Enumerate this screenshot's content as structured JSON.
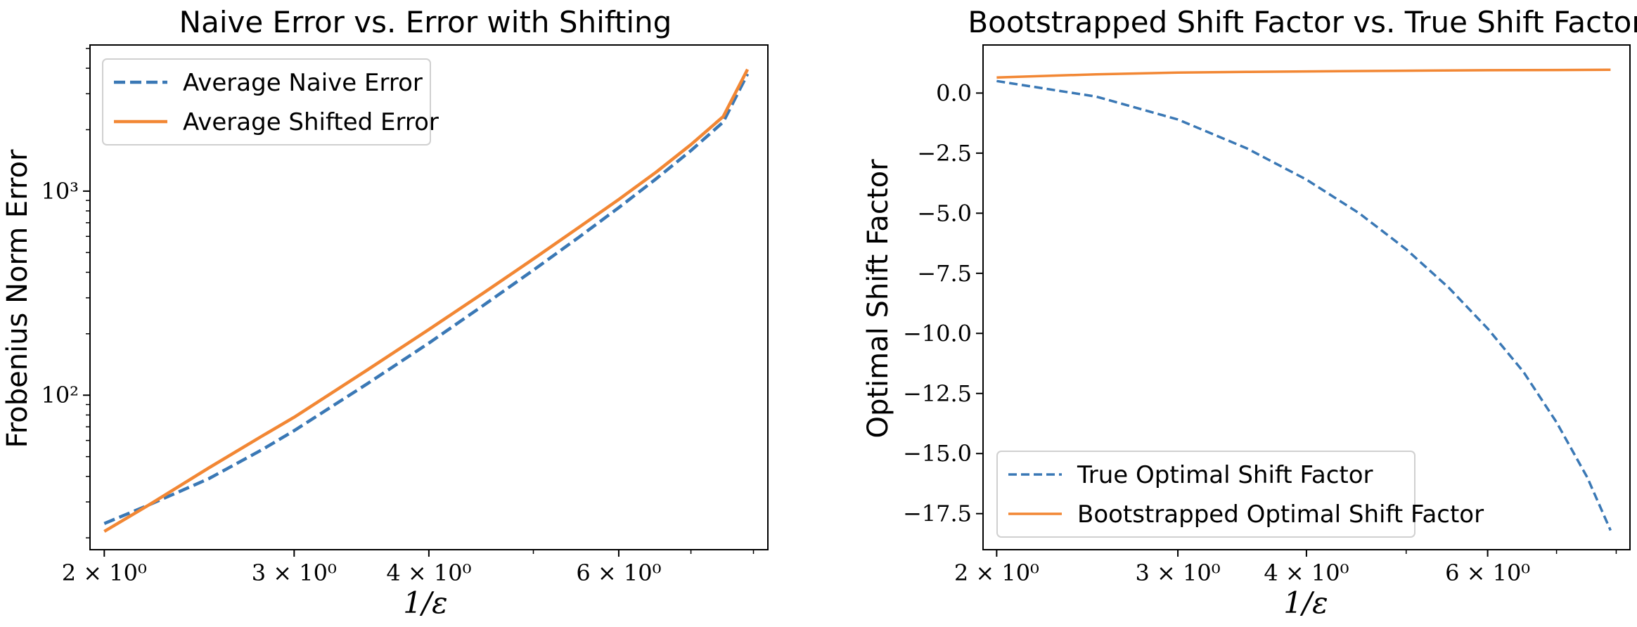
{
  "colors": {
    "naive": "#3a78b5",
    "shifted": "#f28734",
    "frame": "#000000",
    "legend_border": "#d0d0d0"
  },
  "chart_data": [
    {
      "type": "line",
      "title": "Naive Error vs. Error with Shifting",
      "xlabel": "1/ε",
      "ylabel": "Frobenius Norm Error",
      "xscale": "log",
      "yscale": "log",
      "xlim": [
        1.94,
        8.25
      ],
      "ylim": [
        17.5,
        5200
      ],
      "xticks": [
        {
          "value": 2,
          "label": "2 × 10⁰"
        },
        {
          "value": 3,
          "label": "3 × 10⁰"
        },
        {
          "value": 4,
          "label": "4 × 10⁰"
        },
        {
          "value": 6,
          "label": "6 × 10⁰"
        }
      ],
      "yticks": [
        {
          "value": 100,
          "label": "10²"
        },
        {
          "value": 1000,
          "label": "10³"
        }
      ],
      "legend": "upper-left",
      "series": [
        {
          "name": "Average Naive Error",
          "style": "dashed",
          "x": [
            2.0,
            2.2,
            2.5,
            2.8,
            3.0,
            3.5,
            4.0,
            4.5,
            5.0,
            5.5,
            6.0,
            6.5,
            7.0,
            7.5,
            7.9
          ],
          "y": [
            23.5,
            29,
            39,
            54,
            67,
            113,
            180,
            277,
            410,
            590,
            830,
            1150,
            1580,
            2180,
            3750
          ]
        },
        {
          "name": "Average Shifted Error",
          "style": "solid",
          "x": [
            2.0,
            2.2,
            2.5,
            2.8,
            3.0,
            3.5,
            4.0,
            4.5,
            5.0,
            5.5,
            6.0,
            6.5,
            7.0,
            7.5,
            7.9
          ],
          "y": [
            21.5,
            29,
            44,
            63,
            78,
            132,
            210,
            318,
            465,
            660,
            910,
            1240,
            1690,
            2320,
            3950
          ]
        }
      ]
    },
    {
      "type": "line",
      "title": "Bootstrapped Shift Factor vs. True Shift Factor",
      "xlabel": "1/ε",
      "ylabel": "Optimal Shift Factor",
      "xscale": "log",
      "yscale": "linear",
      "xlim": [
        1.94,
        8.25
      ],
      "ylim": [
        -19.0,
        2.0
      ],
      "xticks": [
        {
          "value": 2,
          "label": "2 × 10⁰"
        },
        {
          "value": 3,
          "label": "3 × 10⁰"
        },
        {
          "value": 4,
          "label": "4 × 10⁰"
        },
        {
          "value": 6,
          "label": "6 × 10⁰"
        }
      ],
      "yticks": [
        {
          "value": 0.0,
          "label": "0.0"
        },
        {
          "value": -2.5,
          "label": "−2.5"
        },
        {
          "value": -5.0,
          "label": "−5.0"
        },
        {
          "value": -7.5,
          "label": "−7.5"
        },
        {
          "value": -10.0,
          "label": "−10.0"
        },
        {
          "value": -12.5,
          "label": "−12.5"
        },
        {
          "value": -15.0,
          "label": "−15.0"
        },
        {
          "value": -17.5,
          "label": "−17.5"
        }
      ],
      "legend": "lower-left",
      "series": [
        {
          "name": "True Optimal Shift Factor",
          "style": "dashed",
          "x": [
            2.0,
            2.5,
            3.0,
            3.5,
            4.0,
            4.5,
            5.0,
            5.5,
            6.0,
            6.5,
            7.0,
            7.5,
            7.9
          ],
          "y": [
            0.5,
            -0.15,
            -1.1,
            -2.3,
            -3.6,
            -5.0,
            -6.5,
            -8.1,
            -9.8,
            -11.6,
            -13.7,
            -16.0,
            -18.2
          ]
        },
        {
          "name": "Bootstrapped Optimal Shift Factor",
          "style": "solid",
          "x": [
            2.0,
            2.5,
            3.0,
            3.5,
            4.0,
            5.0,
            6.0,
            7.0,
            7.9
          ],
          "y": [
            0.65,
            0.78,
            0.85,
            0.88,
            0.9,
            0.93,
            0.95,
            0.96,
            0.97
          ]
        }
      ]
    }
  ]
}
